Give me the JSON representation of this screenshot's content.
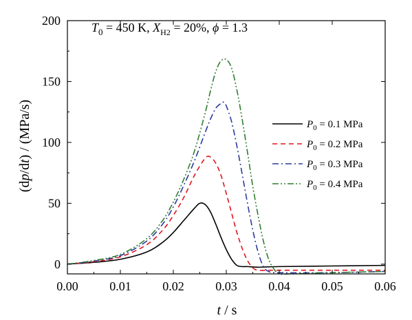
{
  "chart_data": {
    "type": "line",
    "annotation": {
      "t_sym": "T",
      "t_sub": "0",
      "t_val": " = 450 K, ",
      "x_sym": "X",
      "x_sub": "H2",
      "x_val": " = 20%, ",
      "phi_sym": "ϕ",
      "phi_val": " = 1.3"
    },
    "xlabel": {
      "sym": "t",
      "unit": " / s"
    },
    "ylabel": {
      "pre": "(d",
      "p": "p",
      "mid": "/d",
      "t": "t",
      "post": ") / (MPa/s)"
    },
    "xlim": [
      0.0,
      0.06
    ],
    "ylim": [
      -8,
      200
    ],
    "xticks": [
      0.0,
      0.01,
      0.02,
      0.03,
      0.04,
      0.05,
      0.06
    ],
    "xtick_labels": [
      "0.00",
      "0.01",
      "0.02",
      "0.03",
      "0.04",
      "0.05",
      "0.06"
    ],
    "yticks": [
      0,
      50,
      100,
      150,
      200
    ],
    "ytick_labels": [
      "0",
      "50",
      "100",
      "150",
      "200"
    ],
    "grid": false,
    "legend_position": "right",
    "series": [
      {
        "name": "P0 = 0.1 MPa",
        "label_sym": "P",
        "label_sub": "0",
        "label_val": " = 0.1 MPa",
        "color": "#000000",
        "dash": "solid",
        "x": [
          0,
          0.005,
          0.01,
          0.015,
          0.018,
          0.02,
          0.022,
          0.024,
          0.025,
          0.026,
          0.027,
          0.028,
          0.029,
          0.03,
          0.031,
          0.032,
          0.033,
          0.034,
          0.036,
          0.04,
          0.05,
          0.06
        ],
        "y": [
          0,
          1.5,
          4,
          10,
          18,
          26,
          36,
          46,
          50,
          49,
          43,
          33,
          22,
          12,
          4,
          -1,
          -2,
          -2,
          -2.5,
          -2,
          -1.5,
          -1
        ]
      },
      {
        "name": "P0 = 0.2 MPa",
        "label_sym": "P",
        "label_sub": "0",
        "label_val": " = 0.2 MPa",
        "color": "#e0141e",
        "dash": "dashed",
        "x": [
          0,
          0.005,
          0.01,
          0.015,
          0.018,
          0.02,
          0.022,
          0.024,
          0.026,
          0.027,
          0.028,
          0.029,
          0.03,
          0.031,
          0.032,
          0.033,
          0.034,
          0.035,
          0.036,
          0.038,
          0.04,
          0.05,
          0.06
        ],
        "y": [
          0,
          2,
          6,
          16,
          28,
          40,
          55,
          73,
          87,
          88,
          83,
          73,
          58,
          42,
          26,
          13,
          3,
          -3,
          -5,
          -5,
          -5,
          -5,
          -5
        ]
      },
      {
        "name": "P0 = 0.3 MPa",
        "label_sym": "P",
        "label_sub": "0",
        "label_val": " = 0.3 MPa",
        "color": "#2b3a9a",
        "dash": "dashdot",
        "x": [
          0,
          0.005,
          0.01,
          0.015,
          0.018,
          0.02,
          0.022,
          0.024,
          0.026,
          0.027,
          0.028,
          0.029,
          0.0295,
          0.03,
          0.031,
          0.032,
          0.033,
          0.034,
          0.035,
          0.036,
          0.037,
          0.038,
          0.04,
          0.05,
          0.06
        ],
        "y": [
          0,
          2.5,
          7,
          19,
          33,
          47,
          65,
          85,
          108,
          119,
          128,
          132,
          133,
          130,
          117,
          97,
          74,
          50,
          28,
          10,
          -2,
          -6,
          -7,
          -7,
          -6
        ]
      },
      {
        "name": "P0 = 0.4 MPa",
        "label_sym": "P",
        "label_sub": "0",
        "label_val": " = 0.4 MPa",
        "color": "#2e7d32",
        "dash": "dashdotdot",
        "x": [
          0,
          0.005,
          0.01,
          0.015,
          0.018,
          0.02,
          0.022,
          0.024,
          0.026,
          0.027,
          0.028,
          0.029,
          0.03,
          0.031,
          0.032,
          0.033,
          0.034,
          0.035,
          0.036,
          0.037,
          0.038,
          0.039,
          0.04,
          0.042,
          0.05,
          0.06
        ],
        "y": [
          0,
          3,
          8,
          21,
          36,
          51,
          70,
          93,
          124,
          142,
          158,
          167,
          168,
          161,
          143,
          119,
          92,
          64,
          40,
          19,
          4,
          -4,
          -8,
          -8,
          -7,
          -6
        ]
      }
    ]
  }
}
